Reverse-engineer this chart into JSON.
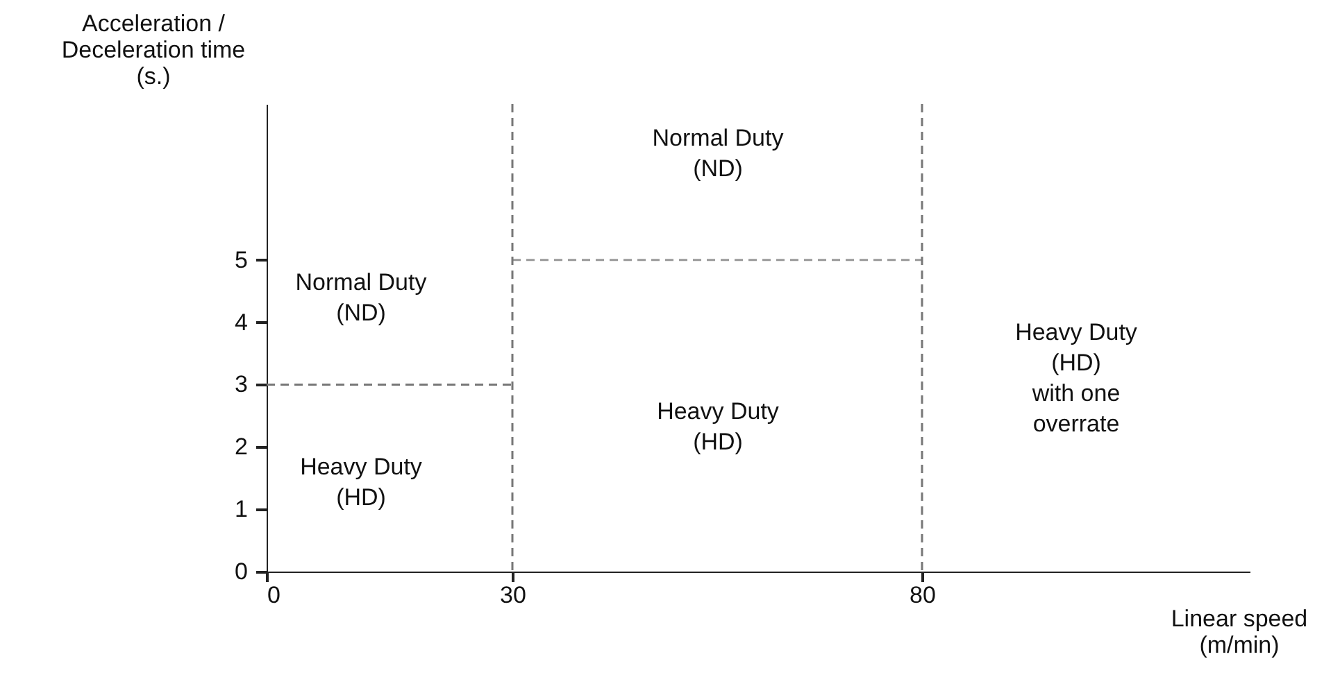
{
  "chart_data": {
    "type": "line",
    "xlabel": "Linear speed\n(m/min)",
    "ylabel": "Acceleration /\nDeceleration time\n(s.)",
    "xlim": [
      0,
      120
    ],
    "ylim": [
      0,
      7.5
    ],
    "xticks": [
      0,
      30,
      80
    ],
    "yticks": [
      0,
      1,
      2,
      3,
      4,
      5
    ],
    "grid": false,
    "marker": "none",
    "series": [
      {
        "color": "#777777",
        "line_style": "dashed",
        "x": [
          0,
          30
        ],
        "values": [
          3,
          3
        ]
      },
      {
        "color": "#999999",
        "line_style": "dashed",
        "x": [
          30,
          80
        ],
        "values": [
          5,
          5
        ]
      }
    ],
    "ref_lines": [
      {
        "axis": "x",
        "value": 30,
        "color": "#777777",
        "line_style": "dashed"
      },
      {
        "axis": "x",
        "value": 80,
        "color": "#777777",
        "line_style": "dashed"
      }
    ],
    "annotations": [
      "Normal Duty\n(ND)",
      "Heavy Duty\n(HD)",
      "Normal Duty\n(ND)",
      "Heavy Duty\n(HD)",
      "Heavy Duty\n(HD)\nwith one\noverrate"
    ]
  }
}
